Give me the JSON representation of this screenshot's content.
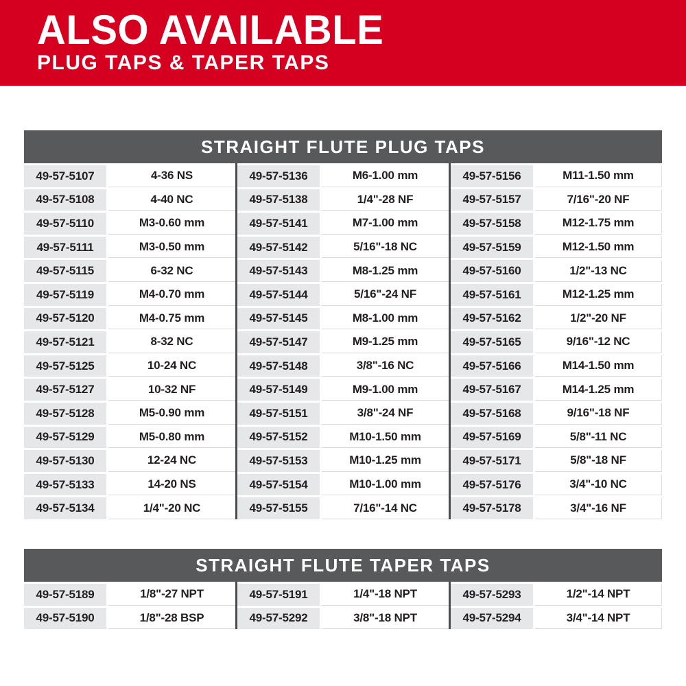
{
  "banner": {
    "title": "ALSO AVAILABLE",
    "subtitle": "PLUG TAPS & TAPER TAPS"
  },
  "colors": {
    "brand_red": "#d5001f",
    "header_gray": "#58595b",
    "row_gray": "#e6e7e8",
    "divider_gray": "#4b4c4e",
    "text": "#231f20"
  },
  "tables": [
    {
      "title": "STRAIGHT FLUTE PLUG TAPS",
      "rows": [
        [
          {
            "sku": "49-57-5107",
            "size": "4-36 NS"
          },
          {
            "sku": "49-57-5136",
            "size": "M6-1.00 mm"
          },
          {
            "sku": "49-57-5156",
            "size": "M11-1.50 mm"
          }
        ],
        [
          {
            "sku": "49-57-5108",
            "size": "4-40 NC"
          },
          {
            "sku": "49-57-5138",
            "size": "1/4\"-28 NF"
          },
          {
            "sku": "49-57-5157",
            "size": "7/16\"-20 NF"
          }
        ],
        [
          {
            "sku": "49-57-5110",
            "size": "M3-0.60 mm"
          },
          {
            "sku": "49-57-5141",
            "size": "M7-1.00 mm"
          },
          {
            "sku": "49-57-5158",
            "size": "M12-1.75 mm"
          }
        ],
        [
          {
            "sku": "49-57-5111",
            "size": "M3-0.50 mm"
          },
          {
            "sku": "49-57-5142",
            "size": "5/16\"-18 NC"
          },
          {
            "sku": "49-57-5159",
            "size": "M12-1.50 mm"
          }
        ],
        [
          {
            "sku": "49-57-5115",
            "size": "6-32 NC"
          },
          {
            "sku": "49-57-5143",
            "size": "M8-1.25 mm"
          },
          {
            "sku": "49-57-5160",
            "size": "1/2\"-13 NC"
          }
        ],
        [
          {
            "sku": "49-57-5119",
            "size": "M4-0.70 mm"
          },
          {
            "sku": "49-57-5144",
            "size": "5/16\"-24 NF"
          },
          {
            "sku": "49-57-5161",
            "size": "M12-1.25 mm"
          }
        ],
        [
          {
            "sku": "49-57-5120",
            "size": "M4-0.75 mm"
          },
          {
            "sku": "49-57-5145",
            "size": "M8-1.00 mm"
          },
          {
            "sku": "49-57-5162",
            "size": "1/2\"-20 NF"
          }
        ],
        [
          {
            "sku": "49-57-5121",
            "size": "8-32 NC"
          },
          {
            "sku": "49-57-5147",
            "size": "M9-1.25 mm"
          },
          {
            "sku": "49-57-5165",
            "size": "9/16\"-12 NC"
          }
        ],
        [
          {
            "sku": "49-57-5125",
            "size": "10-24 NC"
          },
          {
            "sku": "49-57-5148",
            "size": "3/8\"-16 NC"
          },
          {
            "sku": "49-57-5166",
            "size": "M14-1.50 mm"
          }
        ],
        [
          {
            "sku": "49-57-5127",
            "size": "10-32 NF"
          },
          {
            "sku": "49-57-5149",
            "size": "M9-1.00 mm"
          },
          {
            "sku": "49-57-5167",
            "size": "M14-1.25 mm"
          }
        ],
        [
          {
            "sku": "49-57-5128",
            "size": "M5-0.90 mm"
          },
          {
            "sku": "49-57-5151",
            "size": "3/8\"-24 NF"
          },
          {
            "sku": "49-57-5168",
            "size": "9/16\"-18 NF"
          }
        ],
        [
          {
            "sku": "49-57-5129",
            "size": "M5-0.80 mm"
          },
          {
            "sku": "49-57-5152",
            "size": "M10-1.50 mm"
          },
          {
            "sku": "49-57-5169",
            "size": "5/8\"-11 NC"
          }
        ],
        [
          {
            "sku": "49-57-5130",
            "size": "12-24 NC"
          },
          {
            "sku": "49-57-5153",
            "size": "M10-1.25 mm"
          },
          {
            "sku": "49-57-5171",
            "size": "5/8\"-18 NF"
          }
        ],
        [
          {
            "sku": "49-57-5133",
            "size": "14-20 NS"
          },
          {
            "sku": "49-57-5154",
            "size": "M10-1.00 mm"
          },
          {
            "sku": "49-57-5176",
            "size": "3/4\"-10 NC"
          }
        ],
        [
          {
            "sku": "49-57-5134",
            "size": "1/4\"-20 NC"
          },
          {
            "sku": "49-57-5155",
            "size": "7/16\"-14 NC"
          },
          {
            "sku": "49-57-5178",
            "size": "3/4\"-16 NF"
          }
        ]
      ]
    },
    {
      "title": "STRAIGHT FLUTE TAPER TAPS",
      "rows": [
        [
          {
            "sku": "49-57-5189",
            "size": "1/8\"-27 NPT"
          },
          {
            "sku": "49-57-5191",
            "size": "1/4\"-18 NPT"
          },
          {
            "sku": "49-57-5293",
            "size": "1/2\"-14 NPT"
          }
        ],
        [
          {
            "sku": "49-57-5190",
            "size": "1/8\"-28 BSP"
          },
          {
            "sku": "49-57-5292",
            "size": "3/8\"-18 NPT"
          },
          {
            "sku": "49-57-5294",
            "size": "3/4\"-14 NPT"
          }
        ]
      ]
    }
  ]
}
